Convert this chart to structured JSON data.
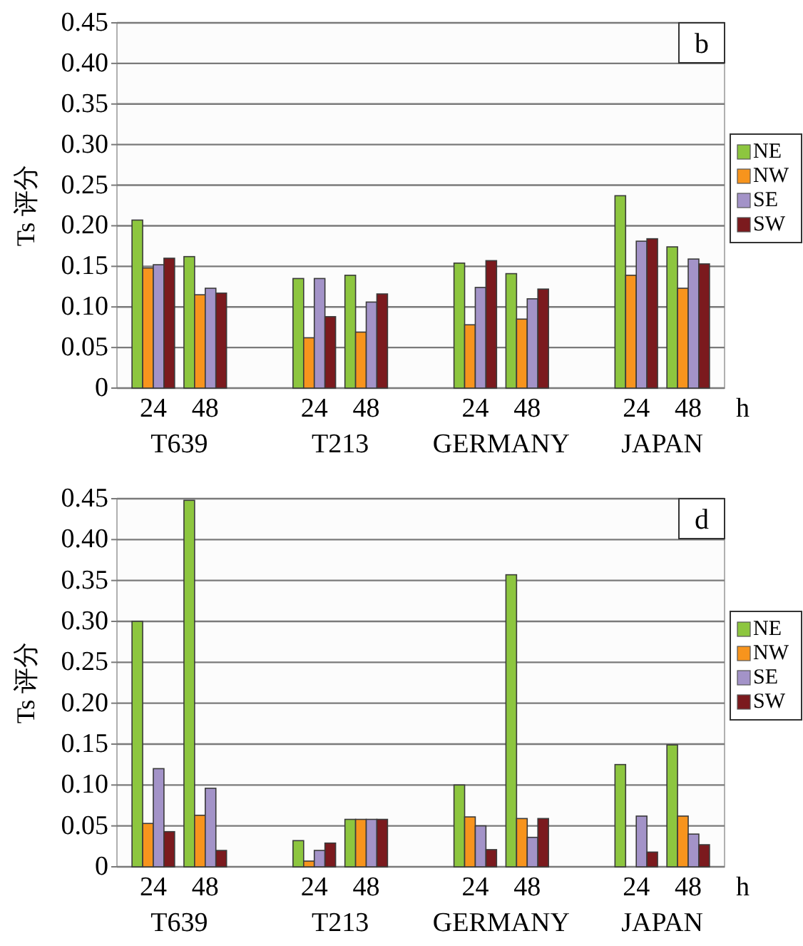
{
  "chart_data": [
    {
      "type": "bar",
      "title": "b",
      "ylabel": "Ts 评分",
      "xlabel": "h",
      "categories": [
        "24",
        "48",
        "24",
        "48",
        "24",
        "48",
        "24",
        "48"
      ],
      "annotations": [
        "T639",
        "T213",
        "GERMANY",
        "JAPAN"
      ],
      "series": [
        {
          "name": "NE",
          "color": "#8dc63f",
          "values": [
            0.207,
            0.162,
            0.135,
            0.139,
            0.154,
            0.141,
            0.237,
            0.174
          ]
        },
        {
          "name": "NW",
          "color": "#f7941d",
          "values": [
            0.148,
            0.115,
            0.062,
            0.069,
            0.078,
            0.085,
            0.139,
            0.123
          ]
        },
        {
          "name": "SE",
          "color": "#a393c8",
          "values": [
            0.152,
            0.123,
            0.135,
            0.106,
            0.124,
            0.11,
            0.181,
            0.159
          ]
        },
        {
          "name": "SW",
          "color": "#7b1a1e",
          "values": [
            0.16,
            0.117,
            0.088,
            0.116,
            0.157,
            0.122,
            0.184,
            0.153
          ]
        }
      ],
      "ylim": [
        0,
        0.45
      ],
      "yticks": [
        0,
        {
          "value": 0.05,
          "label": "0.05"
        },
        {
          "value": 0.1,
          "label": "0.10"
        },
        {
          "value": 0.15,
          "label": "0.15"
        },
        {
          "value": 0.2,
          "label": "0.20"
        },
        {
          "value": 0.25,
          "label": "0.25"
        },
        {
          "value": 0.3,
          "label": "0.30"
        },
        {
          "value": 0.35,
          "label": "0.35"
        },
        {
          "value": 0.4,
          "label": "0.40"
        },
        {
          "value": 0.45,
          "label": "0.45"
        }
      ],
      "grid": "y",
      "legend": "right"
    },
    {
      "type": "bar",
      "title": "d",
      "ylabel": "Ts 评分",
      "xlabel": "h",
      "categories": [
        "24",
        "48",
        "24",
        "48",
        "24",
        "48",
        "24",
        "48"
      ],
      "annotations": [
        "T639",
        "T213",
        "GERMANY",
        "JAPAN"
      ],
      "series": [
        {
          "name": "NE",
          "color": "#8dc63f",
          "values": [
            0.3,
            0.448,
            0.032,
            0.058,
            0.1,
            0.357,
            0.125,
            0.149
          ]
        },
        {
          "name": "NW",
          "color": "#f7941d",
          "values": [
            0.053,
            0.063,
            0.007,
            0.058,
            0.061,
            0.059,
            0,
            0.062
          ]
        },
        {
          "name": "SE",
          "color": "#a393c8",
          "values": [
            0.12,
            0.096,
            0.02,
            0.058,
            0.05,
            0.036,
            0.062,
            0.04
          ]
        },
        {
          "name": "SW",
          "color": "#7b1a1e",
          "values": [
            0.043,
            0.02,
            0.029,
            0.058,
            0.021,
            0.059,
            0.018,
            0.027
          ]
        }
      ],
      "ylim": [
        0,
        0.45
      ],
      "yticks": [
        0,
        {
          "value": 0.05,
          "label": "0.05"
        },
        {
          "value": 0.1,
          "label": "0.10"
        },
        {
          "value": 0.15,
          "label": "0.15"
        },
        {
          "value": 0.2,
          "label": "0.20"
        },
        {
          "value": 0.25,
          "label": "0.25"
        },
        {
          "value": 0.3,
          "label": "0.30"
        },
        {
          "value": 0.35,
          "label": "0.35"
        },
        {
          "value": 0.4,
          "label": "0.40"
        },
        {
          "value": 0.45,
          "label": "0.45"
        }
      ],
      "grid": "y",
      "legend": "right"
    }
  ]
}
